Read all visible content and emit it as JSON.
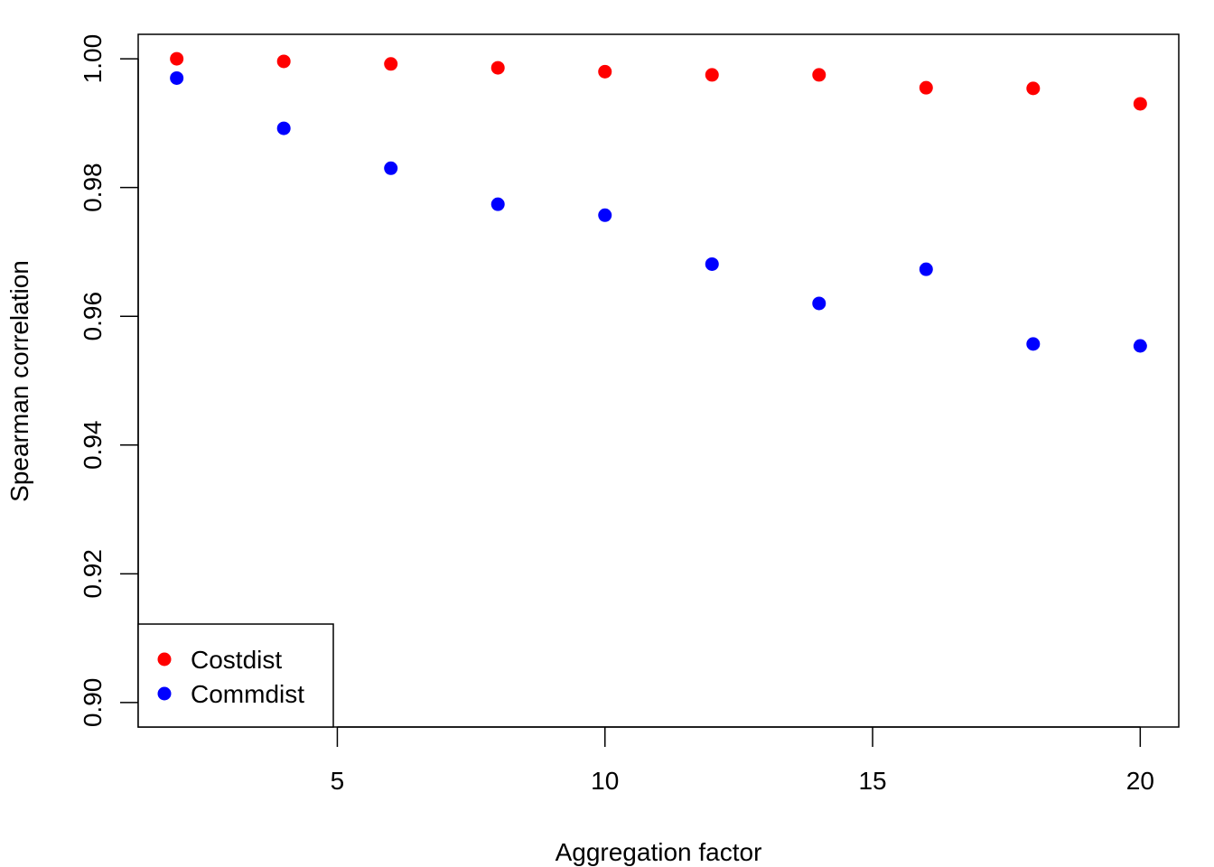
{
  "chart_data": {
    "type": "scatter",
    "title": "",
    "xlabel": "Aggregation factor",
    "ylabel": "Spearman correlation",
    "xlim": [
      1.28,
      20.72
    ],
    "ylim": [
      0.8962,
      1.0038
    ],
    "xticks": [
      5,
      10,
      15,
      20
    ],
    "xtick_labels": [
      "5",
      "10",
      "15",
      "20"
    ],
    "yticks": [
      0.9,
      0.92,
      0.94,
      0.96,
      0.98,
      1.0
    ],
    "ytick_labels": [
      "0.90",
      "0.92",
      "0.94",
      "0.96",
      "0.98",
      "1.00"
    ],
    "grid": false,
    "legend_position": "bottom-left",
    "series": [
      {
        "name": "Costdist",
        "color": "#ff0000",
        "x": [
          2,
          4,
          6,
          8,
          10,
          12,
          14,
          16,
          18,
          20
        ],
        "y": [
          1.0,
          0.9996,
          0.9992,
          0.9986,
          0.998,
          0.9975,
          0.9975,
          0.9955,
          0.9954,
          0.993
        ]
      },
      {
        "name": "Commdist",
        "color": "#0000ff",
        "x": [
          2,
          4,
          6,
          8,
          10,
          12,
          14,
          16,
          18,
          20
        ],
        "y": [
          0.997,
          0.9892,
          0.983,
          0.9774,
          0.9757,
          0.9681,
          0.962,
          0.9673,
          0.9557,
          0.9554
        ]
      }
    ]
  }
}
